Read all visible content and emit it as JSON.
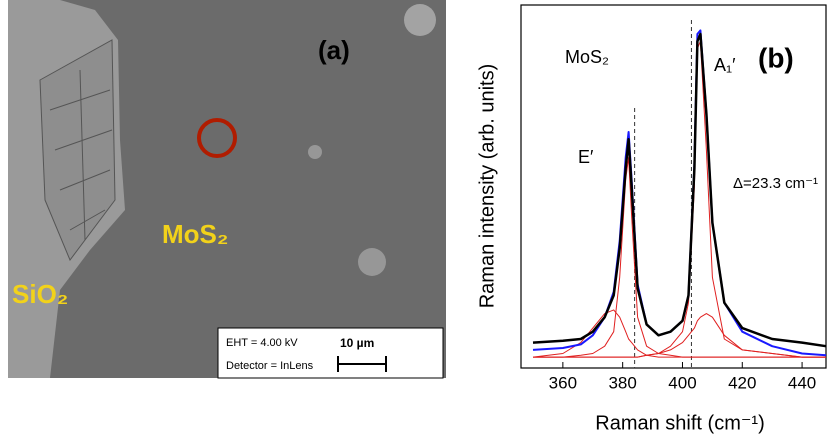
{
  "panel_a": {
    "label": "(a)",
    "material_label": "MoS₂",
    "substrate_label": "SiO₂",
    "scale_box": {
      "eht": "EHT =  4.00 kV",
      "detector": "Detector = InLens",
      "scale": "10 µm"
    }
  },
  "chart_data": {
    "type": "line",
    "xlabel": "Raman shift (cm⁻¹)",
    "ylabel": "Raman intensity (arb. units)",
    "annotations": [
      "MoS₂",
      "(b)",
      "A₁′",
      "E′",
      "Δ=23.3 cm⁻¹"
    ],
    "xlim": [
      346,
      448
    ],
    "xticks": [
      360,
      380,
      400,
      420,
      440
    ],
    "ylim": [
      0,
      100
    ],
    "reference_lines": [
      384,
      403
    ],
    "x": [
      350,
      360,
      366,
      370,
      374,
      377,
      379,
      381,
      382,
      383,
      385,
      388,
      392,
      396,
      400,
      402,
      404,
      405,
      406,
      408,
      410,
      414,
      420,
      430,
      440,
      448
    ],
    "series": [
      {
        "color": "#e02020",
        "values": [
          3,
          3,
          3.5,
          4,
          6,
          10,
          25,
          52,
          58,
          42,
          14,
          6,
          4,
          3.5,
          3,
          3,
          3,
          3,
          3,
          3,
          3,
          3,
          3,
          3,
          3,
          3
        ]
      },
      {
        "color": "#e02020",
        "values": [
          3,
          4,
          7,
          11,
          15,
          16,
          14,
          10,
          8,
          7,
          5,
          3.5,
          3,
          3,
          3,
          3,
          3,
          3,
          3,
          3,
          3,
          3,
          3,
          3,
          3,
          3
        ]
      },
      {
        "color": "#e02020",
        "values": [
          3,
          3,
          3,
          3,
          3,
          3,
          3,
          3,
          3,
          3,
          3,
          3.5,
          4,
          6,
          10,
          18,
          50,
          88,
          90,
          60,
          25,
          8,
          5,
          4,
          3,
          3
        ]
      },
      {
        "color": "#e02020",
        "values": [
          3,
          3,
          3,
          3,
          3,
          3,
          3,
          3,
          3,
          3,
          3,
          3.5,
          4,
          5,
          7,
          9,
          11,
          13,
          14,
          15,
          14,
          9,
          5,
          4,
          3,
          3
        ]
      },
      {
        "color": "#1a1aff",
        "values": [
          5,
          5.5,
          6.5,
          9,
          14,
          21,
          35,
          58,
          65,
          52,
          23,
          12,
          9,
          10,
          13,
          20,
          56,
          92,
          93,
          70,
          40,
          18,
          10,
          6,
          4,
          3.5
        ]
      },
      {
        "color": "#000000",
        "values": [
          7,
          7.5,
          8,
          10,
          14,
          20,
          33,
          55,
          63,
          50,
          22,
          12,
          9,
          10,
          13,
          20,
          55,
          90,
          92,
          70,
          40,
          18,
          11,
          8,
          7,
          6
        ]
      }
    ]
  }
}
